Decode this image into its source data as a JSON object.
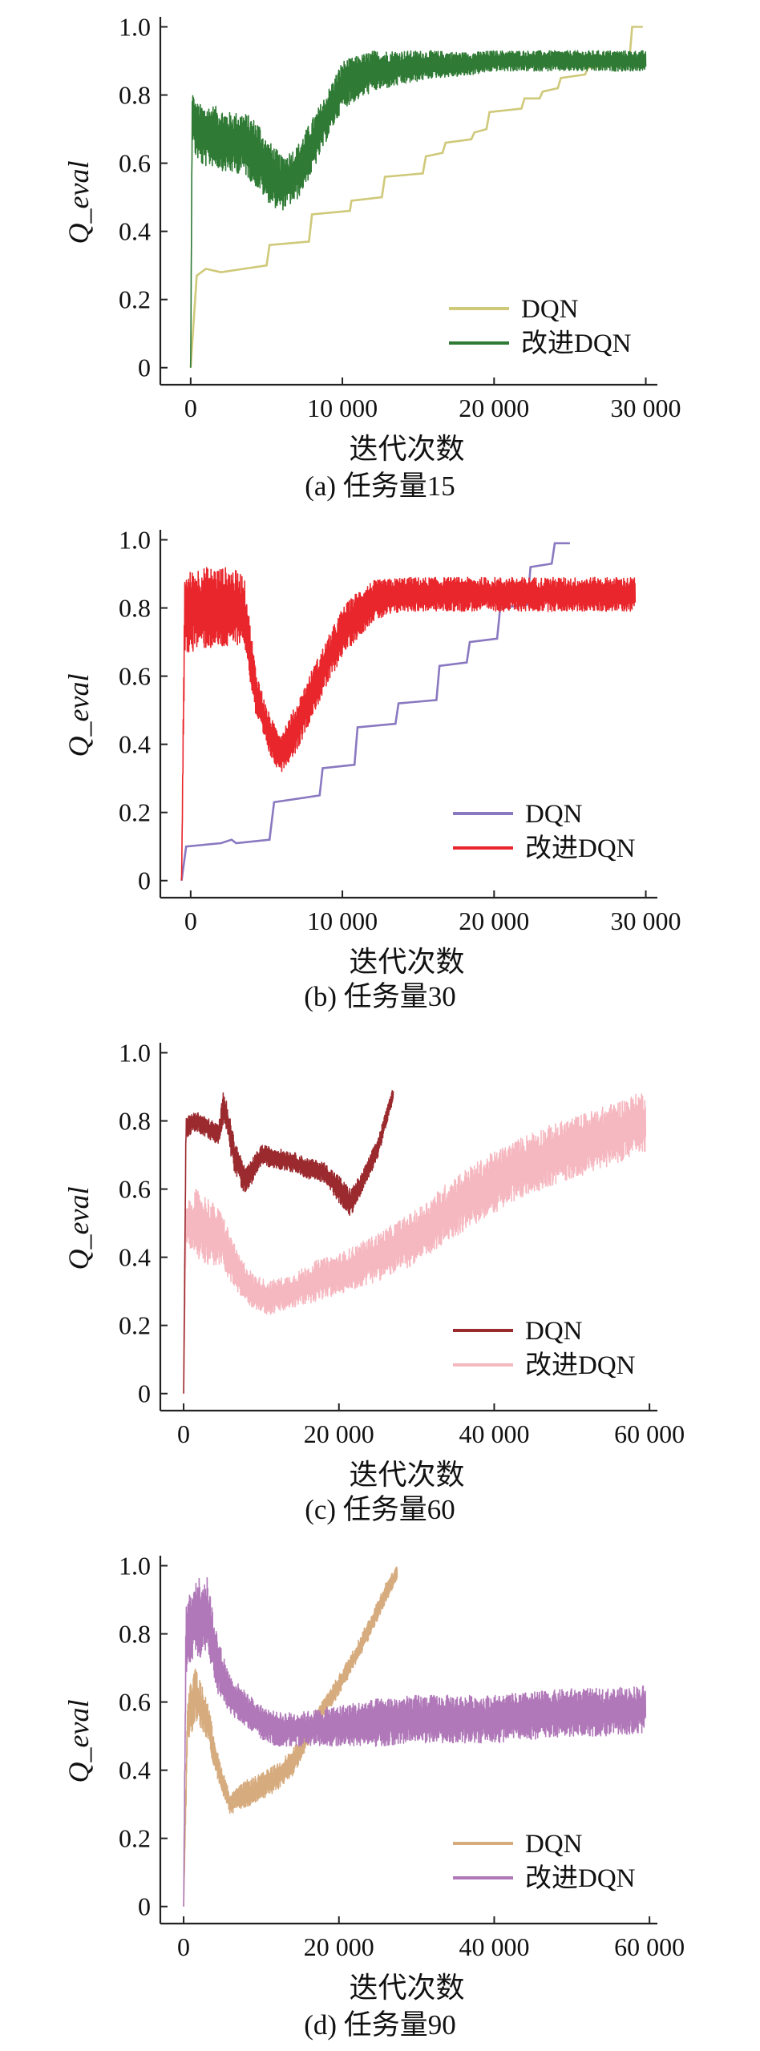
{
  "chart_data": [
    {
      "type": "line",
      "caption": "(a) 任务量15",
      "xlabel": "迭代次数",
      "ylabel": "Q_eval",
      "xlim": [
        -2000,
        30500
      ],
      "ylim": [
        -0.05,
        1.02
      ],
      "x_ticks": [
        0,
        10000,
        20000,
        30000
      ],
      "x_tick_labels": [
        "0",
        "10 000",
        "20 000",
        "30 000"
      ],
      "y_ticks": [
        0,
        0.2,
        0.4,
        0.6,
        0.8,
        1.0
      ],
      "y_tick_labels": [
        "0",
        "0.2",
        "0.4",
        "0.6",
        "0.8",
        "1.0"
      ],
      "legend_position": "lower-right",
      "series": [
        {
          "name": "DQN",
          "color": "#cfc97a",
          "kind": "step",
          "x": [
            0,
            400,
            1000,
            2000,
            3500,
            5000,
            5200,
            7800,
            8000,
            10500,
            10600,
            12600,
            12800,
            15300,
            15500,
            16600,
            16800,
            18500,
            18700,
            19500,
            19700,
            21800,
            22000,
            23000,
            23200,
            24200,
            24400,
            26000,
            26200,
            28900,
            29100,
            29800
          ],
          "y": [
            0.0,
            0.27,
            0.29,
            0.28,
            0.29,
            0.3,
            0.36,
            0.37,
            0.45,
            0.46,
            0.49,
            0.5,
            0.56,
            0.57,
            0.62,
            0.63,
            0.66,
            0.67,
            0.69,
            0.7,
            0.75,
            0.76,
            0.79,
            0.79,
            0.81,
            0.82,
            0.85,
            0.86,
            0.88,
            0.89,
            1.0,
            1.0
          ],
          "noise": 0.0
        },
        {
          "name": "改进DQN",
          "color": "#2f7a34",
          "kind": "noisy",
          "x": [
            0,
            100,
            300,
            800,
            1500,
            2500,
            3500,
            4500,
            5000,
            5500,
            6000,
            7000,
            8000,
            9000,
            10000,
            12000,
            14000,
            16000,
            18000,
            20000,
            22000,
            24000,
            26000,
            28000,
            30000
          ],
          "y": [
            0.0,
            0.75,
            0.7,
            0.68,
            0.68,
            0.66,
            0.66,
            0.62,
            0.58,
            0.56,
            0.54,
            0.57,
            0.65,
            0.74,
            0.83,
            0.87,
            0.88,
            0.89,
            0.89,
            0.9,
            0.9,
            0.9,
            0.9,
            0.9,
            0.9
          ],
          "noise": [
            0.0,
            0.07,
            0.08,
            0.09,
            0.09,
            0.09,
            0.09,
            0.1,
            0.09,
            0.09,
            0.08,
            0.08,
            0.08,
            0.07,
            0.07,
            0.06,
            0.05,
            0.04,
            0.035,
            0.03,
            0.03,
            0.03,
            0.03,
            0.03,
            0.03
          ]
        }
      ]
    },
    {
      "type": "line",
      "caption": "(b) 任务量30",
      "xlabel": "迭代次数",
      "ylabel": "Q_eval",
      "xlim": [
        -2000,
        30500
      ],
      "ylim": [
        -0.05,
        1.02
      ],
      "x_ticks": [
        0,
        10000,
        20000,
        30000
      ],
      "x_tick_labels": [
        "0",
        "10 000",
        "20 000",
        "30 000"
      ],
      "y_ticks": [
        0,
        0.2,
        0.4,
        0.6,
        0.8,
        1.0
      ],
      "y_tick_labels": [
        "0",
        "0.2",
        "0.4",
        "0.6",
        "0.8",
        "1.0"
      ],
      "legend_position": "lower-right",
      "series": [
        {
          "name": "DQN",
          "color": "#8a78c0",
          "kind": "step",
          "x": [
            -600,
            -300,
            2000,
            2700,
            3000,
            5200,
            5500,
            8500,
            8700,
            10800,
            11000,
            13500,
            13700,
            16200,
            16400,
            18200,
            18400,
            20200,
            20400,
            22200,
            22400,
            23800,
            24000,
            25000
          ],
          "y": [
            0.0,
            0.1,
            0.11,
            0.12,
            0.11,
            0.12,
            0.23,
            0.25,
            0.33,
            0.34,
            0.45,
            0.46,
            0.52,
            0.53,
            0.63,
            0.64,
            0.7,
            0.71,
            0.8,
            0.81,
            0.92,
            0.93,
            0.99,
            0.99
          ],
          "noise": 0.0
        },
        {
          "name": "改进DQN",
          "color": "#e8262b",
          "kind": "noisy",
          "x": [
            -600,
            -400,
            500,
            1500,
            2500,
            3500,
            4300,
            5000,
            5500,
            6000,
            7000,
            8000,
            9000,
            10000,
            11000,
            12000,
            14000,
            16000,
            18000,
            20000,
            22000,
            24000,
            26000,
            28000,
            29300
          ],
          "y": [
            0.0,
            0.78,
            0.8,
            0.8,
            0.8,
            0.8,
            0.55,
            0.45,
            0.4,
            0.38,
            0.45,
            0.55,
            0.64,
            0.73,
            0.78,
            0.82,
            0.84,
            0.84,
            0.84,
            0.84,
            0.84,
            0.84,
            0.84,
            0.84,
            0.84
          ],
          "noise": [
            0.0,
            0.12,
            0.12,
            0.12,
            0.12,
            0.1,
            0.07,
            0.06,
            0.06,
            0.06,
            0.07,
            0.07,
            0.07,
            0.07,
            0.07,
            0.06,
            0.05,
            0.05,
            0.05,
            0.05,
            0.05,
            0.05,
            0.05,
            0.05,
            0.05
          ]
        }
      ]
    },
    {
      "type": "line",
      "caption": "(c) 任务量60",
      "xlabel": "迭代次数",
      "ylabel": "Q_eval",
      "xlim": [
        -3000,
        60500
      ],
      "ylim": [
        -0.05,
        1.02
      ],
      "x_ticks": [
        0,
        20000,
        40000,
        60000
      ],
      "x_tick_labels": [
        "0",
        "20 000",
        "40 000",
        "60 000"
      ],
      "y_ticks": [
        0,
        0.2,
        0.4,
        0.6,
        0.8,
        1.0
      ],
      "y_tick_labels": [
        "0",
        "0.2",
        "0.4",
        "0.6",
        "0.8",
        "1.0"
      ],
      "legend_position": "lower-right",
      "series": [
        {
          "name": "改进DQN",
          "color": "#f6b8c0",
          "kind": "noisy",
          "x": [
            0,
            300,
            1500,
            3000,
            5000,
            7000,
            9000,
            11000,
            14000,
            17000,
            20000,
            25000,
            30000,
            35000,
            40000,
            45000,
            50000,
            55000,
            59500
          ],
          "y": [
            0.0,
            0.5,
            0.5,
            0.48,
            0.45,
            0.35,
            0.3,
            0.28,
            0.3,
            0.33,
            0.35,
            0.4,
            0.46,
            0.55,
            0.62,
            0.68,
            0.72,
            0.76,
            0.8
          ],
          "noise": [
            0.0,
            0.05,
            0.1,
            0.1,
            0.08,
            0.06,
            0.05,
            0.05,
            0.05,
            0.06,
            0.06,
            0.07,
            0.08,
            0.09,
            0.09,
            0.09,
            0.09,
            0.09,
            0.09
          ]
        },
        {
          "name": "DQN",
          "color": "#9b2a2e",
          "kind": "noisy",
          "x": [
            0,
            300,
            1500,
            3000,
            4500,
            5200,
            6500,
            8000,
            10000,
            12000,
            14000,
            16000,
            18000,
            20000,
            21500,
            23000,
            25000,
            27000
          ],
          "y": [
            0.0,
            0.78,
            0.8,
            0.78,
            0.76,
            0.85,
            0.7,
            0.62,
            0.7,
            0.69,
            0.68,
            0.66,
            0.65,
            0.6,
            0.56,
            0.62,
            0.72,
            0.88
          ],
          "noise": [
            0.0,
            0.03,
            0.03,
            0.03,
            0.03,
            0.05,
            0.05,
            0.04,
            0.03,
            0.03,
            0.03,
            0.03,
            0.03,
            0.04,
            0.04,
            0.03,
            0.03,
            0.02
          ]
        }
      ]
    },
    {
      "type": "line",
      "caption": "(d) 任务量90",
      "xlabel": "迭代次数",
      "ylabel": "Q_eval",
      "xlim": [
        -3000,
        60500
      ],
      "ylim": [
        -0.05,
        1.02
      ],
      "x_ticks": [
        0,
        20000,
        40000,
        60000
      ],
      "x_tick_labels": [
        "0",
        "20 000",
        "40 000",
        "60 000"
      ],
      "y_ticks": [
        0,
        0.2,
        0.4,
        0.6,
        0.8,
        1.0
      ],
      "y_tick_labels": [
        "0",
        "0.2",
        "0.4",
        "0.6",
        "0.8",
        "1.0"
      ],
      "legend_position": "lower-right",
      "series": [
        {
          "name": "DQN",
          "color": "#d6ab7e",
          "kind": "noisy",
          "x": [
            0,
            500,
            1500,
            3000,
            4500,
            6000,
            8000,
            10000,
            12000,
            14000,
            16000,
            18000,
            20000,
            22000,
            24000,
            26000,
            27500
          ],
          "y": [
            0.0,
            0.55,
            0.62,
            0.55,
            0.4,
            0.3,
            0.33,
            0.35,
            0.38,
            0.42,
            0.5,
            0.58,
            0.65,
            0.73,
            0.82,
            0.92,
            0.98
          ],
          "noise": [
            0.0,
            0.08,
            0.08,
            0.06,
            0.04,
            0.03,
            0.04,
            0.04,
            0.04,
            0.04,
            0.03,
            0.03,
            0.03,
            0.03,
            0.03,
            0.03,
            0.02
          ]
        },
        {
          "name": "改进DQN",
          "color": "#b078b8",
          "kind": "noisy",
          "x": [
            0,
            300,
            1500,
            3000,
            4500,
            6000,
            8000,
            10000,
            12000,
            15000,
            20000,
            25000,
            30000,
            35000,
            40000,
            45000,
            50000,
            55000,
            59500
          ],
          "y": [
            0.0,
            0.78,
            0.85,
            0.85,
            0.7,
            0.62,
            0.58,
            0.54,
            0.52,
            0.52,
            0.53,
            0.54,
            0.55,
            0.55,
            0.55,
            0.56,
            0.57,
            0.57,
            0.58
          ],
          "noise": [
            0.0,
            0.1,
            0.12,
            0.12,
            0.08,
            0.06,
            0.05,
            0.05,
            0.05,
            0.05,
            0.06,
            0.07,
            0.07,
            0.07,
            0.07,
            0.07,
            0.07,
            0.07,
            0.07
          ]
        }
      ]
    }
  ]
}
